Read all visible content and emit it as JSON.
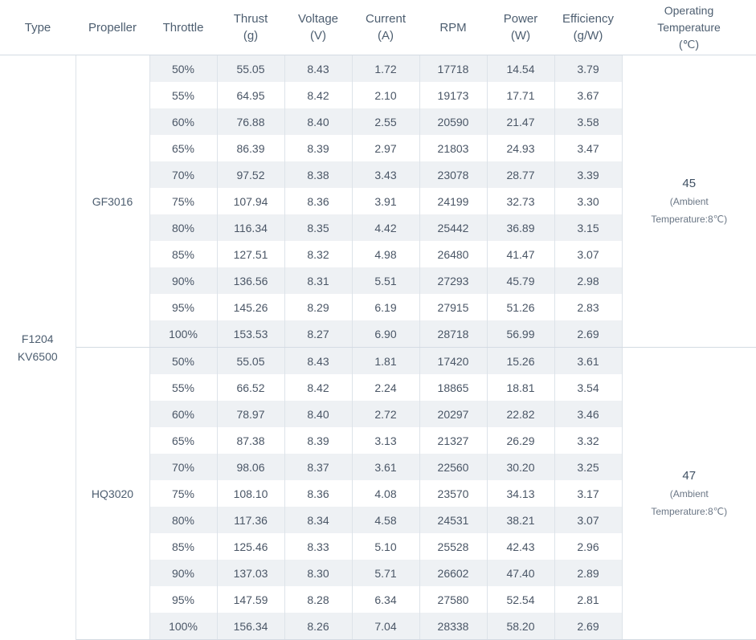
{
  "headers": [
    [
      "Type"
    ],
    [
      "Propeller"
    ],
    [
      "Throttle"
    ],
    [
      "Thrust",
      "(g)"
    ],
    [
      "Voltage",
      "(V)"
    ],
    [
      "Current",
      "(A)"
    ],
    [
      "RPM"
    ],
    [
      "Power",
      "(W)"
    ],
    [
      "Efficiency",
      "(g/W)"
    ],
    [
      "Operating",
      "Temperature",
      "(℃)"
    ]
  ],
  "type": [
    "F1204",
    "KV6500"
  ],
  "groups": [
    {
      "propeller": "GF3016",
      "temperature": "45",
      "temperature_note": [
        "(Ambient",
        "Temperature:8℃)"
      ],
      "rows": [
        [
          "50%",
          "55.05",
          "8.43",
          "1.72",
          "17718",
          "14.54",
          "3.79"
        ],
        [
          "55%",
          "64.95",
          "8.42",
          "2.10",
          "19173",
          "17.71",
          "3.67"
        ],
        [
          "60%",
          "76.88",
          "8.40",
          "2.55",
          "20590",
          "21.47",
          "3.58"
        ],
        [
          "65%",
          "86.39",
          "8.39",
          "2.97",
          "21803",
          "24.93",
          "3.47"
        ],
        [
          "70%",
          "97.52",
          "8.38",
          "3.43",
          "23078",
          "28.77",
          "3.39"
        ],
        [
          "75%",
          "107.94",
          "8.36",
          "3.91",
          "24199",
          "32.73",
          "3.30"
        ],
        [
          "80%",
          "116.34",
          "8.35",
          "4.42",
          "25442",
          "36.89",
          "3.15"
        ],
        [
          "85%",
          "127.51",
          "8.32",
          "4.98",
          "26480",
          "41.47",
          "3.07"
        ],
        [
          "90%",
          "136.56",
          "8.31",
          "5.51",
          "27293",
          "45.79",
          "2.98"
        ],
        [
          "95%",
          "145.26",
          "8.29",
          "6.19",
          "27915",
          "51.26",
          "2.83"
        ],
        [
          "100%",
          "153.53",
          "8.27",
          "6.90",
          "28718",
          "56.99",
          "2.69"
        ]
      ]
    },
    {
      "propeller": "HQ3020",
      "temperature": "47",
      "temperature_note": [
        "(Ambient",
        "Temperature:8℃)"
      ],
      "rows": [
        [
          "50%",
          "55.05",
          "8.43",
          "1.81",
          "17420",
          "15.26",
          "3.61"
        ],
        [
          "55%",
          "66.52",
          "8.42",
          "2.24",
          "18865",
          "18.81",
          "3.54"
        ],
        [
          "60%",
          "78.97",
          "8.40",
          "2.72",
          "20297",
          "22.82",
          "3.46"
        ],
        [
          "65%",
          "87.38",
          "8.39",
          "3.13",
          "21327",
          "26.29",
          "3.32"
        ],
        [
          "70%",
          "98.06",
          "8.37",
          "3.61",
          "22560",
          "30.20",
          "3.25"
        ],
        [
          "75%",
          "108.10",
          "8.36",
          "4.08",
          "23570",
          "34.13",
          "3.17"
        ],
        [
          "80%",
          "117.36",
          "8.34",
          "4.58",
          "24531",
          "38.21",
          "3.07"
        ],
        [
          "85%",
          "125.46",
          "8.33",
          "5.10",
          "25528",
          "42.43",
          "2.96"
        ],
        [
          "90%",
          "137.03",
          "8.30",
          "5.71",
          "26602",
          "47.40",
          "2.89"
        ],
        [
          "95%",
          "147.59",
          "8.28",
          "6.34",
          "27580",
          "52.54",
          "2.81"
        ],
        [
          "100%",
          "156.34",
          "8.26",
          "7.04",
          "28338",
          "58.20",
          "2.69"
        ]
      ]
    }
  ]
}
